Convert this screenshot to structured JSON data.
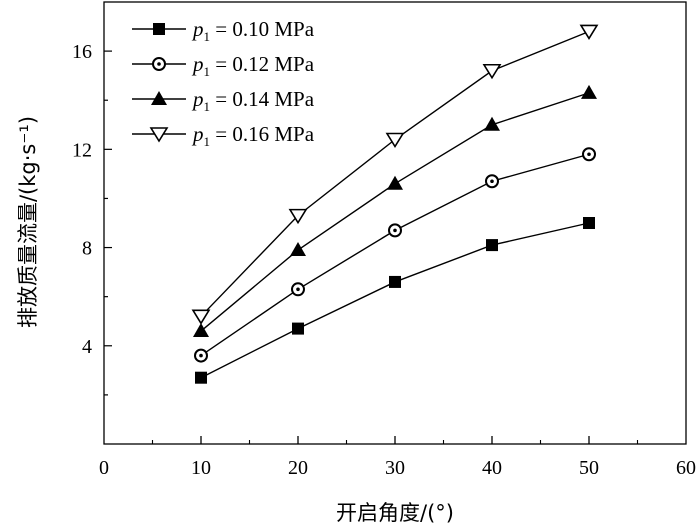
{
  "chart_data": {
    "type": "line",
    "xlabel": "开启角度/(°)",
    "ylabel": "排放质量流量/(kg·s⁻¹)",
    "xlim": [
      0,
      60
    ],
    "ylim": [
      0,
      18
    ],
    "xticks": [
      0,
      10,
      20,
      30,
      40,
      50,
      60
    ],
    "yticks": [
      4,
      8,
      12,
      16
    ],
    "grid": false,
    "legend_position": "top-left",
    "x": [
      10,
      20,
      30,
      40,
      50
    ],
    "series": [
      {
        "name": "p1 = 0.10 MPa",
        "legend": {
          "var": "p",
          "sub": "1",
          "rest": " = 0.10 MPa"
        },
        "marker": "square-filled",
        "values": [
          2.7,
          4.7,
          6.6,
          8.1,
          9.0
        ]
      },
      {
        "name": "p1 = 0.12 MPa",
        "legend": {
          "var": "p",
          "sub": "1",
          "rest": " = 0.12 MPa"
        },
        "marker": "circle-dot",
        "values": [
          3.6,
          6.3,
          8.7,
          10.7,
          11.8
        ]
      },
      {
        "name": "p1 = 0.14 MPa",
        "legend": {
          "var": "p",
          "sub": "1",
          "rest": " = 0.14 MPa"
        },
        "marker": "triangle-up-filled",
        "values": [
          4.6,
          7.9,
          10.6,
          13.0,
          14.3
        ]
      },
      {
        "name": "p1 = 0.16 MPa",
        "legend": {
          "var": "p",
          "sub": "1",
          "rest": " = 0.16 MPa"
        },
        "marker": "triangle-down-open",
        "values": [
          5.2,
          9.3,
          12.4,
          15.2,
          16.8
        ]
      }
    ]
  }
}
